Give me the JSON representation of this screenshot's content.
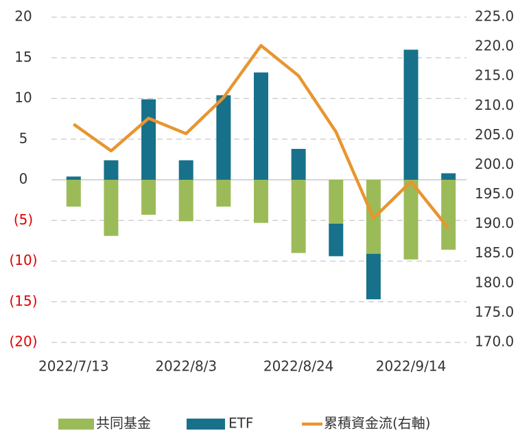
{
  "chart_data": {
    "type": "bar",
    "categories": [
      "2022/7/13",
      null,
      null,
      "2022/8/3",
      null,
      null,
      "2022/8/24",
      null,
      null,
      "2022/9/14",
      null
    ],
    "series": [
      {
        "name": "共同基金",
        "color": "#9bbb59",
        "values": [
          -3.3,
          -6.9,
          -4.3,
          -5.1,
          -3.3,
          -5.3,
          -9.0,
          -5.4,
          -9.1,
          -9.8,
          -8.6
        ]
      },
      {
        "name": "ETF",
        "color": "#17718a",
        "values": [
          0.4,
          2.4,
          9.9,
          2.4,
          10.4,
          13.2,
          3.8,
          -4.0,
          -5.6,
          16.0,
          0.8
        ]
      },
      {
        "name": "累積資金流(右軸)",
        "color": "#e8952f",
        "type": "line",
        "axis": "y2",
        "values": [
          206.9,
          202.4,
          207.9,
          205.3,
          211.4,
          220.2,
          215.1,
          205.6,
          191.0,
          197.2,
          189.3
        ]
      }
    ],
    "ylim": [
      -20,
      20
    ],
    "yticks": [
      20,
      15,
      10,
      5,
      0,
      {
        "value": -5,
        "label": "(5)"
      },
      {
        "value": -10,
        "label": "(10)"
      },
      {
        "value": -15,
        "label": "(15)"
      },
      {
        "value": -20,
        "label": "(20)"
      }
    ],
    "y2lim": [
      170,
      225
    ],
    "y2ticks": [
      {
        "value": 225,
        "label": "225.0"
      },
      {
        "value": 220,
        "label": "220.0"
      },
      {
        "value": 215,
        "label": "215.0"
      },
      {
        "value": 210,
        "label": "210.0"
      },
      {
        "value": 205,
        "label": "205.0"
      },
      {
        "value": 200,
        "label": "200.0"
      },
      {
        "value": 195,
        "label": "195.0"
      },
      {
        "value": 190,
        "label": "190.0"
      },
      {
        "value": 185,
        "label": "185.0"
      },
      {
        "value": 180,
        "label": "180.0"
      },
      {
        "value": 175,
        "label": "175.0"
      },
      {
        "value": 170,
        "label": "170.0"
      }
    ],
    "negative_label_color": "#e00000",
    "grid": true,
    "legend": "bottom"
  }
}
